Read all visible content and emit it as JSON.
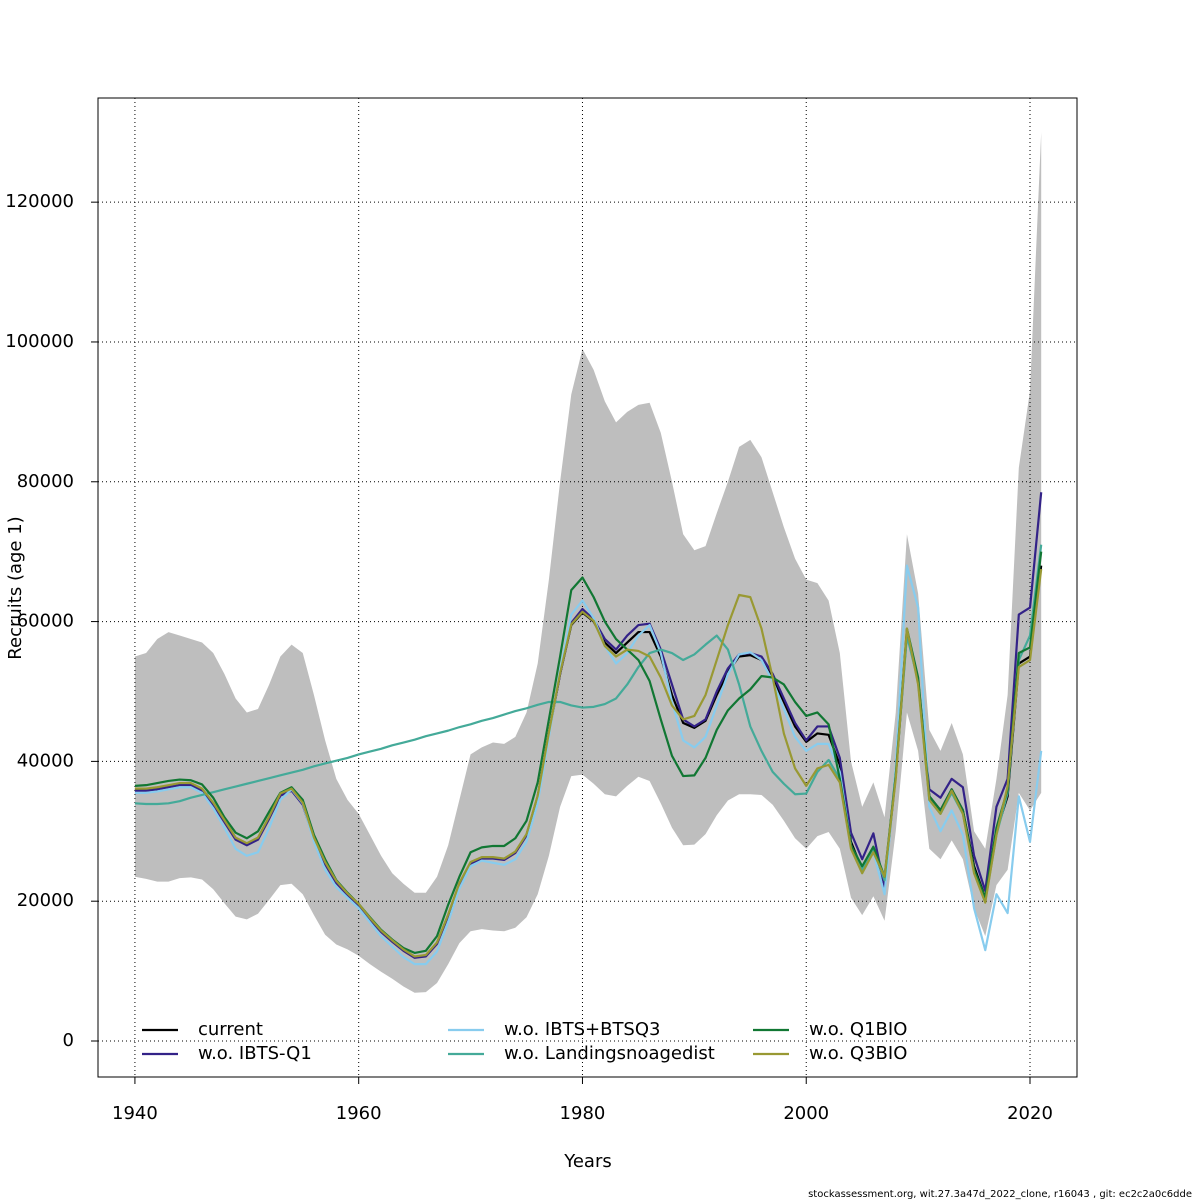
{
  "chart_data": {
    "type": "line",
    "x_label": "Years",
    "y_label": "Recruits (age 1)",
    "footer": "stockassessment.org, wit.27.3a47d_2022_clone, r16043 , git: ec2c2a0c6dde",
    "x": [
      1940,
      1941,
      1942,
      1943,
      1944,
      1945,
      1946,
      1947,
      1948,
      1949,
      1950,
      1951,
      1952,
      1953,
      1954,
      1955,
      1956,
      1957,
      1958,
      1959,
      1960,
      1961,
      1962,
      1963,
      1964,
      1965,
      1966,
      1967,
      1968,
      1969,
      1970,
      1971,
      1972,
      1973,
      1974,
      1975,
      1976,
      1977,
      1978,
      1979,
      1980,
      1981,
      1982,
      1983,
      1984,
      1985,
      1986,
      1987,
      1988,
      1989,
      1990,
      1991,
      1992,
      1993,
      1994,
      1995,
      1996,
      1997,
      1998,
      1999,
      2000,
      2001,
      2002,
      2003,
      2004,
      2005,
      2006,
      2007,
      2008,
      2009,
      2010,
      2011,
      2012,
      2013,
      2014,
      2015,
      2016,
      2017,
      2018,
      2019,
      2020,
      2021
    ],
    "band": {
      "color": "#bebebe",
      "upper": [
        55000,
        55500,
        57500,
        58500,
        58000,
        57500,
        57000,
        55500,
        52500,
        49000,
        47000,
        47500,
        51000,
        55000,
        56700,
        55500,
        49500,
        43000,
        37500,
        34500,
        32500,
        29500,
        26500,
        24000,
        22500,
        21200,
        21200,
        23500,
        28000,
        34500,
        41000,
        42000,
        42700,
        42500,
        43500,
        47000,
        54000,
        66000,
        80000,
        92500,
        99000,
        96000,
        91500,
        88500,
        90000,
        91000,
        91300,
        87000,
        80000,
        72500,
        70200,
        70800,
        75500,
        80000,
        85000,
        86000,
        83500,
        78500,
        73500,
        69000,
        66000,
        65500,
        63000,
        55500,
        40000,
        33500,
        37000,
        32000,
        47000,
        72500,
        64000,
        44500,
        41500,
        45500,
        41000,
        30000,
        27500,
        37500,
        49500,
        82000,
        93000,
        130000
      ],
      "lower": [
        23500,
        23200,
        22800,
        22800,
        23300,
        23400,
        23100,
        21700,
        19700,
        17800,
        17400,
        18200,
        20200,
        22300,
        22500,
        21000,
        18000,
        15200,
        13800,
        13100,
        12200,
        11000,
        9900,
        8900,
        7800,
        6900,
        7000,
        8300,
        11000,
        14000,
        15700,
        16000,
        15800,
        15700,
        16200,
        17700,
        21000,
        26500,
        33500,
        37900,
        38100,
        36800,
        35300,
        35000,
        36500,
        37800,
        37200,
        34000,
        30500,
        28000,
        28100,
        29600,
        32300,
        34400,
        35300,
        35300,
        35200,
        33800,
        31500,
        29000,
        27500,
        29300,
        29900,
        27500,
        20500,
        18000,
        20700,
        17200,
        30000,
        47000,
        41500,
        27500,
        26000,
        28700,
        26000,
        19000,
        15000,
        22300,
        24500,
        35500,
        33000,
        35500
      ]
    },
    "series": [
      {
        "name": "current",
        "color": "#000000",
        "values": [
          36000,
          36000,
          36200,
          36500,
          36800,
          36800,
          36000,
          34000,
          31500,
          29000,
          28200,
          29000,
          32000,
          35300,
          36000,
          34000,
          29000,
          25500,
          22800,
          21000,
          19500,
          17500,
          15700,
          14300,
          13000,
          12000,
          12200,
          14000,
          18000,
          22500,
          25500,
          26200,
          26200,
          26000,
          27000,
          29500,
          35000,
          44000,
          52500,
          59500,
          61300,
          60000,
          57000,
          55500,
          57000,
          58500,
          58500,
          55000,
          49500,
          45500,
          44800,
          45800,
          49500,
          52800,
          55000,
          55200,
          54500,
          52000,
          48500,
          45000,
          42800,
          44000,
          43800,
          39500,
          28500,
          24500,
          27500,
          23000,
          38000,
          58500,
          51500,
          35000,
          33000,
          36000,
          33000,
          25000,
          20500,
          30000,
          35000,
          54000,
          55000,
          68000
        ]
      },
      {
        "name": "w.o. IBTS-Q1",
        "color": "#332288",
        "values": [
          35800,
          35800,
          36000,
          36300,
          36600,
          36600,
          35800,
          33800,
          31300,
          28800,
          28000,
          28800,
          31800,
          35100,
          35800,
          33800,
          28800,
          25300,
          22600,
          20900,
          19400,
          17400,
          15600,
          14200,
          12900,
          11900,
          12100,
          13900,
          17900,
          22400,
          25400,
          26100,
          26100,
          25900,
          26900,
          29400,
          34900,
          44000,
          52500,
          59800,
          61800,
          60300,
          57500,
          56000,
          58000,
          59500,
          59700,
          56000,
          51000,
          46000,
          45000,
          46000,
          50000,
          53300,
          55300,
          55500,
          55000,
          52500,
          49000,
          45500,
          43000,
          45000,
          45000,
          40500,
          29800,
          26000,
          29700,
          22000,
          38500,
          58500,
          51500,
          36000,
          34800,
          37500,
          36300,
          26500,
          21500,
          33500,
          37500,
          61000,
          62000,
          78500
        ]
      },
      {
        "name": "w.o. IBTS+BTSQ3",
        "color": "#88ccee",
        "values": [
          35500,
          35500,
          35700,
          36000,
          36300,
          36300,
          35500,
          33300,
          30500,
          27500,
          26500,
          27000,
          30500,
          34500,
          36000,
          34000,
          28500,
          24500,
          22000,
          20500,
          19000,
          17000,
          15000,
          13500,
          12000,
          11000,
          11000,
          12800,
          17000,
          21800,
          25000,
          25800,
          25500,
          25200,
          26000,
          28500,
          34000,
          43500,
          53000,
          61000,
          63000,
          60500,
          56500,
          54000,
          55500,
          58000,
          59500,
          55500,
          48500,
          43000,
          42000,
          43500,
          48000,
          52500,
          55300,
          55600,
          54500,
          51500,
          47500,
          43500,
          41500,
          42500,
          42500,
          38500,
          28000,
          24000,
          27000,
          21000,
          39000,
          68000,
          62000,
          33500,
          30000,
          33000,
          29500,
          19000,
          13000,
          21000,
          18300,
          35000,
          28500,
          41500
        ]
      },
      {
        "name": "w.o. Landingsnoagedist",
        "color": "#44aa99",
        "values": [
          34000,
          33900,
          33900,
          34000,
          34300,
          34800,
          35200,
          35600,
          36000,
          36400,
          36800,
          37200,
          37600,
          38000,
          38400,
          38800,
          39300,
          39700,
          40100,
          40500,
          41000,
          41400,
          41800,
          42300,
          42700,
          43100,
          43600,
          44000,
          44400,
          44900,
          45300,
          45800,
          46200,
          46700,
          47200,
          47600,
          48100,
          48500,
          48500,
          48000,
          47700,
          47800,
          48200,
          49000,
          51000,
          53500,
          55500,
          56000,
          55500,
          54500,
          55300,
          56700,
          58000,
          56000,
          51000,
          45000,
          41500,
          38500,
          36800,
          35300,
          35400,
          38500,
          40200,
          37500,
          28000,
          24500,
          27500,
          23000,
          38000,
          58000,
          51500,
          34500,
          32500,
          35500,
          32500,
          24500,
          20000,
          29500,
          35500,
          54500,
          58000,
          71000
        ]
      },
      {
        "name": "w.o. Q1BIO",
        "color": "#117733",
        "values": [
          36500,
          36600,
          36900,
          37200,
          37400,
          37300,
          36700,
          34800,
          32000,
          29800,
          29000,
          30000,
          32800,
          35500,
          36300,
          34500,
          29500,
          26000,
          23000,
          21200,
          19600,
          17700,
          15900,
          14500,
          13300,
          12600,
          12900,
          15000,
          19500,
          23500,
          27000,
          27700,
          27900,
          27900,
          29000,
          31500,
          37000,
          46000,
          55000,
          64500,
          66300,
          63500,
          60000,
          57500,
          56000,
          54500,
          51500,
          46000,
          40800,
          37900,
          38000,
          40500,
          44500,
          47300,
          49000,
          50300,
          52200,
          52000,
          51000,
          48500,
          46500,
          47000,
          45300,
          37500,
          28000,
          25000,
          27800,
          23500,
          38000,
          59000,
          52000,
          35000,
          33000,
          36000,
          33000,
          24500,
          20500,
          30500,
          36000,
          55500,
          56300,
          70000
        ]
      },
      {
        "name": "w.o. Q3BIO",
        "color": "#999933",
        "values": [
          36100,
          36100,
          36300,
          36600,
          36900,
          36900,
          36100,
          34100,
          31600,
          29100,
          28300,
          29100,
          32100,
          35400,
          36100,
          34100,
          29100,
          25600,
          22900,
          21100,
          19600,
          17600,
          15800,
          14400,
          13100,
          12100,
          12300,
          14100,
          18100,
          22600,
          25600,
          26300,
          26300,
          26100,
          27100,
          29600,
          35100,
          44100,
          52600,
          59600,
          61400,
          60100,
          56500,
          55000,
          56000,
          55800,
          55000,
          52000,
          48000,
          46000,
          46500,
          49500,
          54500,
          59500,
          63800,
          63500,
          59000,
          52000,
          44000,
          39000,
          36500,
          39000,
          39500,
          37000,
          27500,
          24000,
          27000,
          23500,
          37500,
          59000,
          51000,
          34500,
          32500,
          35800,
          32500,
          24000,
          19800,
          29500,
          36500,
          53500,
          54500,
          67500
        ]
      }
    ],
    "xlim": [
      1936.7,
      2024.2
    ],
    "ylim": [
      -5150,
      134900
    ],
    "xticks": [
      1940,
      1960,
      1980,
      2000,
      2020
    ],
    "yticks": [
      0,
      20000,
      40000,
      60000,
      80000,
      100000,
      120000
    ],
    "grid": true,
    "legend": "bottom"
  }
}
